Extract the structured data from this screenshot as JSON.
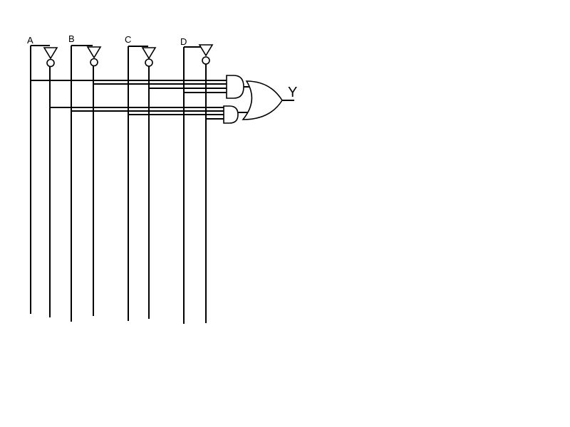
{
  "inputs": {
    "a": "A",
    "b": "B",
    "c": "C",
    "d": "D"
  },
  "output": "Y"
}
